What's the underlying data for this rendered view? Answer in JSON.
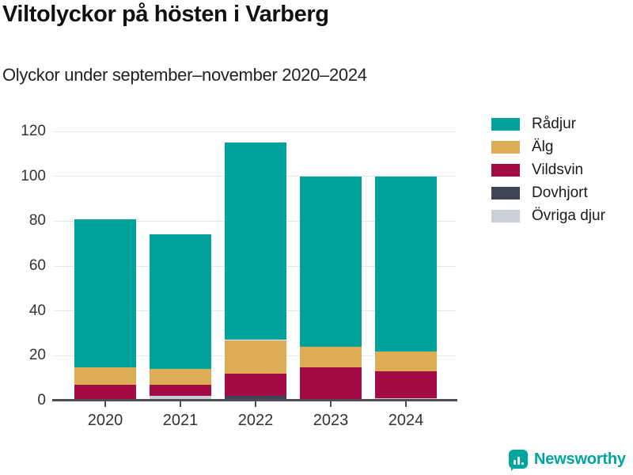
{
  "header": {
    "title": "Viltolyckor på hösten i Varberg",
    "subtitle": "Olyckor under september–november 2020–2024"
  },
  "chart_data": {
    "type": "bar",
    "stacked": true,
    "title": "Viltolyckor på hösten i Varberg",
    "subtitle": "Olyckor under september–november 2020–2024",
    "categories": [
      "2020",
      "2021",
      "2022",
      "2023",
      "2024"
    ],
    "series": [
      {
        "name": "Rådjur",
        "color": "#00A29B",
        "values": [
          66,
          60,
          88,
          76,
          78
        ]
      },
      {
        "name": "Älg",
        "color": "#DCAD54",
        "values": [
          8,
          7,
          15,
          9,
          9
        ]
      },
      {
        "name": "Vildsvin",
        "color": "#A30B45",
        "values": [
          7,
          5,
          10,
          15,
          12
        ]
      },
      {
        "name": "Dovhjort",
        "color": "#3F4455",
        "values": [
          0,
          0,
          2,
          0,
          0
        ]
      },
      {
        "name": "Övriga djur",
        "color": "#CBCED6",
        "values": [
          0,
          2,
          0,
          0,
          1
        ]
      }
    ],
    "stack_order_bottom_to_top": [
      "Övriga djur",
      "Dovhjort",
      "Vildsvin",
      "Älg",
      "Rådjur"
    ],
    "totals": [
      81,
      74,
      115,
      100,
      100
    ],
    "xlabel": "",
    "ylabel": "",
    "ylim": [
      0,
      120
    ],
    "yticks": [
      0,
      20,
      40,
      60,
      80,
      100,
      120
    ],
    "grid": true,
    "legend_position": "top-right"
  },
  "footer": {
    "brand": "Newsworthy",
    "brand_color": "#00A5A0"
  }
}
